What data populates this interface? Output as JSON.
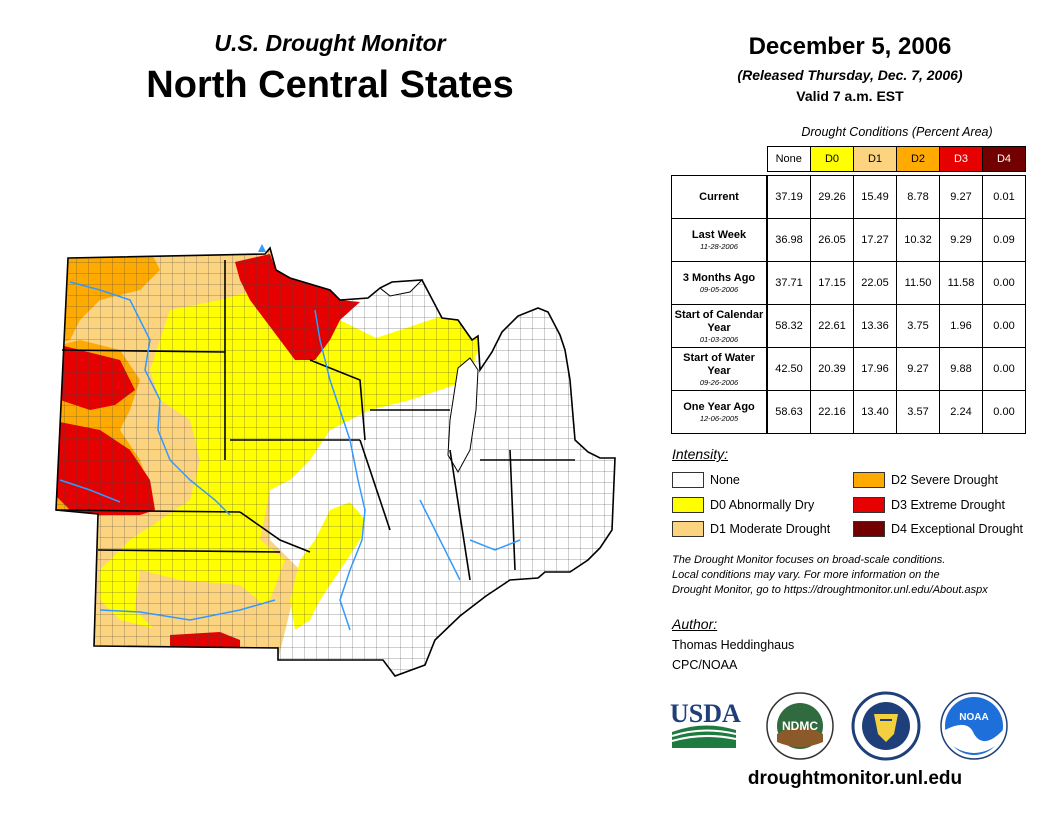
{
  "header": {
    "subtitle": "U.S. Drought Monitor",
    "region": "North Central States",
    "date": "December 5, 2006",
    "released": "(Released Thursday, Dec. 7, 2006)",
    "valid": "Valid 7 a.m. EST"
  },
  "table": {
    "caption": "Drought Conditions (Percent Area)",
    "columns": [
      {
        "label": "None",
        "color": "#ffffff"
      },
      {
        "label": "D0",
        "color": "#ffff00"
      },
      {
        "label": "D1",
        "color": "#fcd37f"
      },
      {
        "label": "D2",
        "color": "#ffaa00"
      },
      {
        "label": "D3",
        "color": "#e60000"
      },
      {
        "label": "D4",
        "color": "#730000"
      }
    ],
    "rows": [
      {
        "label": "Current",
        "sub": "",
        "values": [
          "37.19",
          "29.26",
          "15.49",
          "8.78",
          "9.27",
          "0.01"
        ]
      },
      {
        "label": "Last Week",
        "sub": "11-28-2006",
        "values": [
          "36.98",
          "26.05",
          "17.27",
          "10.32",
          "9.29",
          "0.09"
        ]
      },
      {
        "label": "3 Months Ago",
        "sub": "09-05-2006",
        "values": [
          "37.71",
          "17.15",
          "22.05",
          "11.50",
          "11.58",
          "0.00"
        ]
      },
      {
        "label": "Start of Calendar Year",
        "sub": "01-03-2006",
        "values": [
          "58.32",
          "22.61",
          "13.36",
          "3.75",
          "1.96",
          "0.00"
        ]
      },
      {
        "label": "Start of Water Year",
        "sub": "09-26-2006",
        "values": [
          "42.50",
          "20.39",
          "17.96",
          "9.27",
          "9.88",
          "0.00"
        ]
      },
      {
        "label": "One Year Ago",
        "sub": "12-06-2005",
        "values": [
          "58.63",
          "22.16",
          "13.40",
          "3.57",
          "2.24",
          "0.00"
        ]
      }
    ]
  },
  "legend": {
    "title": "Intensity:",
    "items": [
      {
        "label": "None",
        "color": "#ffffff"
      },
      {
        "label": "D0 Abnormally Dry",
        "color": "#ffff00"
      },
      {
        "label": "D1 Moderate Drought",
        "color": "#fcd37f"
      },
      {
        "label": "D2 Severe Drought",
        "color": "#ffaa00"
      },
      {
        "label": "D3 Extreme Drought",
        "color": "#e60000"
      },
      {
        "label": "D4 Exceptional Drought",
        "color": "#730000"
      }
    ]
  },
  "disclaimer": {
    "line1": "The Drought Monitor focuses on broad-scale conditions.",
    "line2": "Local conditions may vary. For more information on the",
    "line3": "Drought Monitor, go to https://droughtmonitor.unl.edu/About.aspx"
  },
  "author": {
    "title": "Author:",
    "name": "Thomas Heddinghaus",
    "org": "CPC/NOAA"
  },
  "logos": {
    "usda": "USDA",
    "ndmc": "NDMC",
    "noaa": "NOAA"
  },
  "website": "droughtmonitor.unl.edu"
}
